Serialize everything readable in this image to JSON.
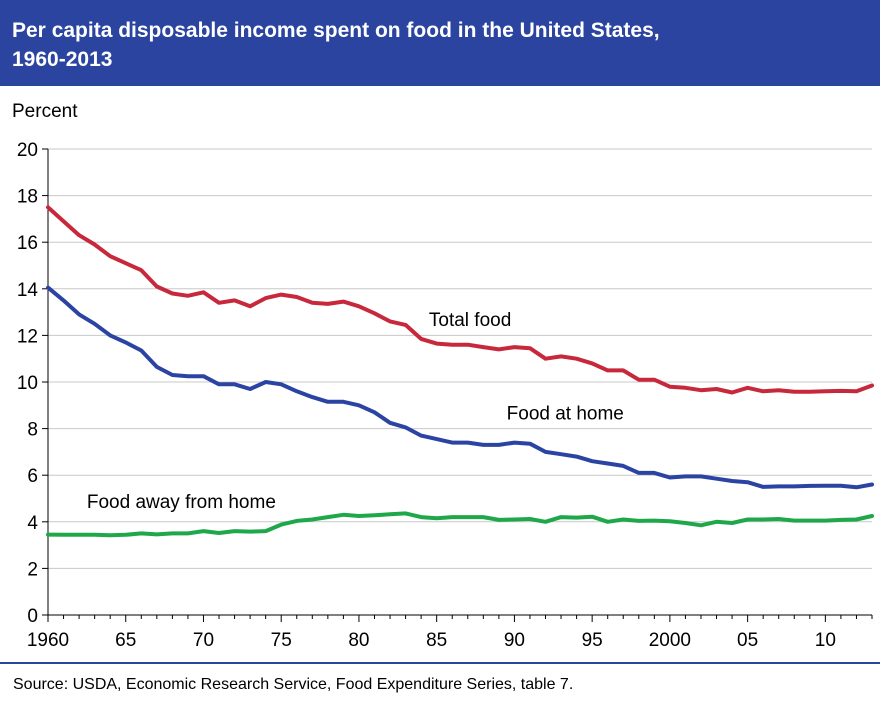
{
  "header": {
    "title_line1": "Per capita disposable income spent on food in the United States,",
    "title_line2": "1960-2013"
  },
  "footer": {
    "source": "Source: USDA, Economic Research Service, Food Expenditure Series, table 7."
  },
  "colors": {
    "header_bg": "#2a44a0",
    "total_food": "#c8283c",
    "food_at_home": "#2b44a3",
    "food_away": "#1fa84a",
    "grid": "#c8c8c8"
  },
  "chart_data": {
    "type": "line",
    "title": "Per capita disposable income spent on food in the United States, 1960-2013",
    "ylabel": "Percent",
    "xlabel": "",
    "ylim": [
      0,
      20
    ],
    "xlim": [
      1960,
      2013
    ],
    "grid": true,
    "yticks": [
      0,
      2,
      4,
      6,
      8,
      10,
      12,
      14,
      16,
      18,
      20
    ],
    "xticks": [
      {
        "value": 1960,
        "label": "1960"
      },
      {
        "value": 1965,
        "label": "65"
      },
      {
        "value": 1970,
        "label": "70"
      },
      {
        "value": 1975,
        "label": "75"
      },
      {
        "value": 1980,
        "label": "80"
      },
      {
        "value": 1985,
        "label": "85"
      },
      {
        "value": 1990,
        "label": "90"
      },
      {
        "value": 1995,
        "label": "95"
      },
      {
        "value": 2000,
        "label": "2000"
      },
      {
        "value": 2005,
        "label": "05"
      },
      {
        "value": 2010,
        "label": "10"
      }
    ],
    "x": [
      1960,
      1961,
      1962,
      1963,
      1964,
      1965,
      1966,
      1967,
      1968,
      1969,
      1970,
      1971,
      1972,
      1973,
      1974,
      1975,
      1976,
      1977,
      1978,
      1979,
      1980,
      1981,
      1982,
      1983,
      1984,
      1985,
      1986,
      1987,
      1988,
      1989,
      1990,
      1991,
      1992,
      1993,
      1994,
      1995,
      1996,
      1997,
      1998,
      1999,
      2000,
      2001,
      2002,
      2003,
      2004,
      2005,
      2006,
      2007,
      2008,
      2009,
      2010,
      2011,
      2012,
      2013
    ],
    "series": [
      {
        "name": "Total food",
        "label": "Total food",
        "label_at": [
          1984.5,
          12.4
        ],
        "values": [
          17.5,
          16.9,
          16.3,
          15.9,
          15.4,
          15.1,
          14.8,
          14.1,
          13.8,
          13.7,
          13.85,
          13.4,
          13.5,
          13.25,
          13.6,
          13.75,
          13.65,
          13.4,
          13.35,
          13.45,
          13.25,
          12.95,
          12.6,
          12.45,
          11.85,
          11.65,
          11.6,
          11.6,
          11.5,
          11.4,
          11.5,
          11.45,
          11.0,
          11.1,
          11.0,
          10.8,
          10.5,
          10.5,
          10.1,
          10.1,
          9.8,
          9.75,
          9.65,
          9.7,
          9.55,
          9.75,
          9.6,
          9.65,
          9.58,
          9.58,
          9.6,
          9.62,
          9.6,
          9.85
        ]
      },
      {
        "name": "Food at home",
        "label": "Food at home",
        "label_at": [
          1989.5,
          8.4
        ],
        "values": [
          14.05,
          13.5,
          12.9,
          12.5,
          12.0,
          11.7,
          11.35,
          10.65,
          10.3,
          10.25,
          10.25,
          9.9,
          9.9,
          9.7,
          10.0,
          9.9,
          9.6,
          9.35,
          9.15,
          9.15,
          9.0,
          8.7,
          8.25,
          8.05,
          7.7,
          7.55,
          7.4,
          7.4,
          7.3,
          7.3,
          7.4,
          7.35,
          7.0,
          6.9,
          6.8,
          6.6,
          6.5,
          6.4,
          6.1,
          6.1,
          5.9,
          5.95,
          5.95,
          5.85,
          5.75,
          5.7,
          5.5,
          5.52,
          5.52,
          5.54,
          5.55,
          5.55,
          5.48,
          5.6
        ]
      },
      {
        "name": "Food away from home",
        "label": "Food away from home",
        "label_at": [
          1962.5,
          4.6
        ],
        "values": [
          3.45,
          3.44,
          3.44,
          3.44,
          3.42,
          3.44,
          3.5,
          3.46,
          3.5,
          3.5,
          3.6,
          3.52,
          3.6,
          3.58,
          3.6,
          3.88,
          4.04,
          4.1,
          4.2,
          4.3,
          4.25,
          4.28,
          4.32,
          4.36,
          4.2,
          4.15,
          4.2,
          4.2,
          4.2,
          4.08,
          4.1,
          4.12,
          4.0,
          4.2,
          4.18,
          4.22,
          4.0,
          4.1,
          4.04,
          4.05,
          4.02,
          3.95,
          3.85,
          4.0,
          3.95,
          4.1,
          4.1,
          4.12,
          4.05,
          4.05,
          4.05,
          4.08,
          4.1,
          4.25
        ]
      }
    ]
  }
}
